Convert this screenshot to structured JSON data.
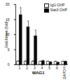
{
  "chart_data": {
    "type": "bar",
    "y_label": "Enrichment (fold)",
    "categories": [
      "1",
      "2",
      "3",
      "4",
      "5",
      "6",
      "GAPDH"
    ],
    "annotations": [
      "WAG1"
    ],
    "series": [
      {
        "name": "IgG ChIP",
        "color": "#ffffff",
        "values": [
          1,
          1,
          1,
          1,
          1,
          1,
          1
        ],
        "errors": [
          0.3,
          0.3,
          0.3,
          0.2,
          0.2,
          0.2,
          0.2
        ]
      },
      {
        "name": "Stat3 ChIP",
        "color": "#000000",
        "values": [
          16.5,
          12.5,
          9.5,
          1.2,
          0.8,
          0.7,
          1
        ],
        "errors": [
          2.5,
          2,
          2,
          0.3,
          0.2,
          0.2,
          0.2
        ]
      }
    ],
    "ylim": [
      0,
      20
    ],
    "yticks": [
      0,
      5,
      10,
      15,
      20
    ],
    "legend": "top-right"
  }
}
